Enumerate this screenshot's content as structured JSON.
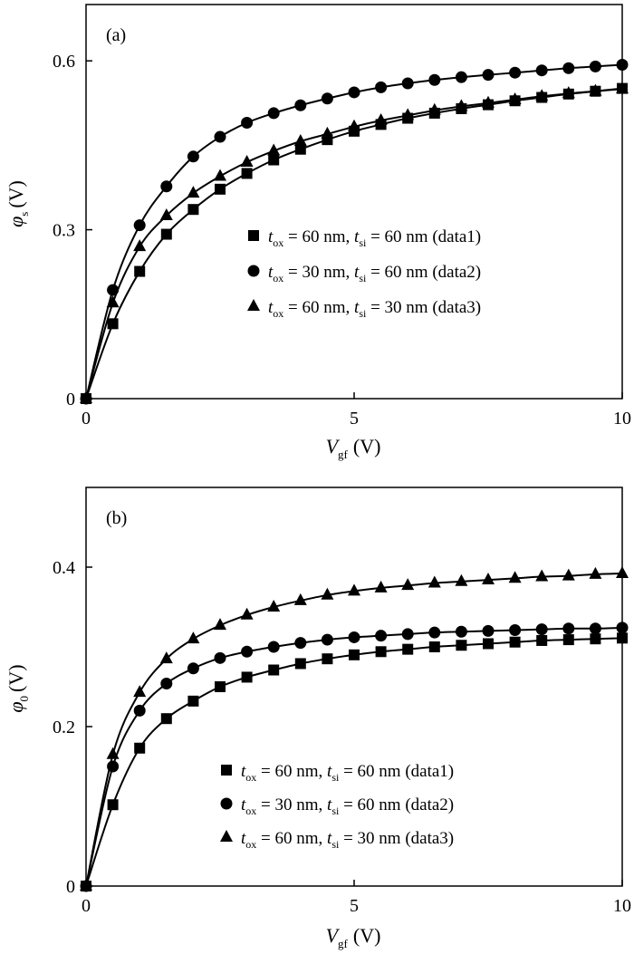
{
  "chart_data": [
    {
      "type": "line",
      "panel_label": "(a)",
      "xlabel": {
        "var": "V",
        "sub": "gf",
        "unit": "(V)"
      },
      "ylabel": {
        "var": "φ",
        "sub": "s",
        "unit": "(V)"
      },
      "xlim": [
        0,
        10
      ],
      "ylim": [
        0,
        0.7
      ],
      "xticks": [
        0,
        5,
        10
      ],
      "xtick_labels": [
        "0",
        "5",
        "10"
      ],
      "yticks": [
        0,
        0.3,
        0.6
      ],
      "ytick_labels": [
        "0",
        "0.3",
        "0.6"
      ],
      "grid": false,
      "legend_position": "center-right",
      "x": [
        0,
        0.5,
        1,
        1.5,
        2,
        2.5,
        3,
        3.5,
        4,
        4.5,
        5,
        5.5,
        6,
        6.5,
        7,
        7.5,
        8,
        8.5,
        9,
        9.5,
        10
      ],
      "series": [
        {
          "name": "t_ox = 60 nm, t_si = 60 nm (data1)",
          "legend": {
            "a": "t",
            "a_sub": "ox",
            "b": " = 60 nm, ",
            "c": "t",
            "c_sub": "si",
            "d": " = 60 nm (data1)"
          },
          "marker": "square",
          "values": [
            0,
            0.133,
            0.226,
            0.292,
            0.336,
            0.372,
            0.4,
            0.424,
            0.443,
            0.46,
            0.475,
            0.487,
            0.498,
            0.507,
            0.515,
            0.522,
            0.529,
            0.535,
            0.541,
            0.546,
            0.551
          ]
        },
        {
          "name": "t_ox = 30 nm, t_si = 60 nm (data2)",
          "legend": {
            "a": "t",
            "a_sub": "ox",
            "b": " = 30 nm, ",
            "c": "t",
            "c_sub": "si",
            "d": " = 60 nm (data2)"
          },
          "marker": "circle",
          "values": [
            0,
            0.193,
            0.308,
            0.377,
            0.43,
            0.465,
            0.49,
            0.507,
            0.521,
            0.533,
            0.544,
            0.553,
            0.56,
            0.566,
            0.571,
            0.575,
            0.579,
            0.583,
            0.587,
            0.59,
            0.593
          ]
        },
        {
          "name": "t_ox = 60 nm, t_si = 30 nm (data3)",
          "legend": {
            "a": "t",
            "a_sub": "ox",
            "b": " = 60 nm, ",
            "c": "t",
            "c_sub": "si",
            "d": " = 30 nm (data3)"
          },
          "marker": "triangle",
          "values": [
            0,
            0.17,
            0.27,
            0.325,
            0.365,
            0.395,
            0.42,
            0.44,
            0.457,
            0.47,
            0.483,
            0.494,
            0.503,
            0.512,
            0.519,
            0.525,
            0.531,
            0.537,
            0.542,
            0.546,
            0.55
          ]
        }
      ]
    },
    {
      "type": "line",
      "panel_label": "(b)",
      "xlabel": {
        "var": "V",
        "sub": "gf",
        "unit": "(V)"
      },
      "ylabel": {
        "var": "φ",
        "sub": "0",
        "unit": "(V)"
      },
      "xlim": [
        0,
        10
      ],
      "ylim": [
        0,
        0.5
      ],
      "xticks": [
        0,
        5,
        10
      ],
      "xtick_labels": [
        "0",
        "5",
        "10"
      ],
      "yticks": [
        0,
        0.2,
        0.4
      ],
      "ytick_labels": [
        "0",
        "0.2",
        "0.4"
      ],
      "grid": false,
      "legend_position": "bottom-right",
      "x": [
        0,
        0.5,
        1,
        1.5,
        2,
        2.5,
        3,
        3.5,
        4,
        4.5,
        5,
        5.5,
        6,
        6.5,
        7,
        7.5,
        8,
        8.5,
        9,
        9.5,
        10
      ],
      "series": [
        {
          "name": "t_ox = 60 nm, t_si = 60 nm (data1)",
          "legend": {
            "a": "t",
            "a_sub": "ox",
            "b": " = 60 nm, ",
            "c": "t",
            "c_sub": "si",
            "d": " = 60 nm (data1)"
          },
          "marker": "square",
          "values": [
            0,
            0.102,
            0.173,
            0.21,
            0.232,
            0.25,
            0.262,
            0.271,
            0.279,
            0.285,
            0.29,
            0.294,
            0.297,
            0.3,
            0.302,
            0.304,
            0.306,
            0.308,
            0.309,
            0.31,
            0.311
          ]
        },
        {
          "name": "t_ox = 30 nm, t_si = 60 nm (data2)",
          "legend": {
            "a": "t",
            "a_sub": "ox",
            "b": " = 30 nm, ",
            "c": "t",
            "c_sub": "si",
            "d": " = 60 nm (data2)"
          },
          "marker": "circle",
          "values": [
            0,
            0.15,
            0.22,
            0.254,
            0.273,
            0.286,
            0.294,
            0.3,
            0.305,
            0.309,
            0.312,
            0.314,
            0.316,
            0.318,
            0.319,
            0.32,
            0.321,
            0.322,
            0.323,
            0.323,
            0.324
          ]
        },
        {
          "name": "t_ox = 60 nm, t_si = 30 nm (data3)",
          "legend": {
            "a": "t",
            "a_sub": "ox",
            "b": " = 60 nm, ",
            "c": "t",
            "c_sub": "si",
            "d": " = 30 nm (data3)"
          },
          "marker": "triangle",
          "values": [
            0,
            0.165,
            0.243,
            0.285,
            0.31,
            0.327,
            0.34,
            0.35,
            0.358,
            0.365,
            0.37,
            0.374,
            0.377,
            0.38,
            0.382,
            0.384,
            0.386,
            0.388,
            0.389,
            0.391,
            0.392
          ]
        }
      ]
    }
  ]
}
